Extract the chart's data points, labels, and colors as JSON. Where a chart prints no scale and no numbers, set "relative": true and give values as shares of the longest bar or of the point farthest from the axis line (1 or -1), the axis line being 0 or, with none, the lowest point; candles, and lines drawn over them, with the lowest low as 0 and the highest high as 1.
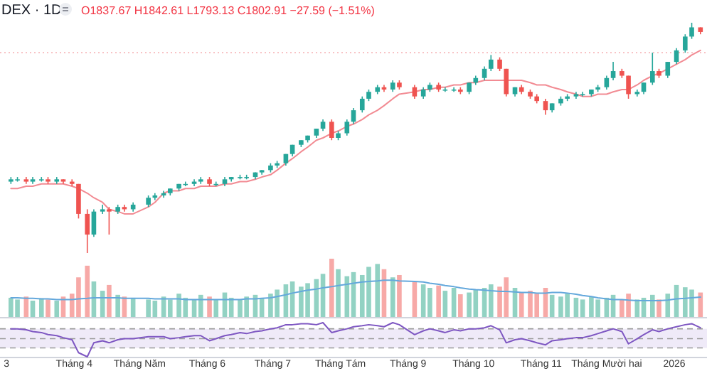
{
  "chart_data": [
    {
      "type": "candlestick",
      "title": "DEX · 1D",
      "subtitle": "O1837.67 H1842.61 L1793.13 C1802.91 −27.59 (−1.51%)",
      "relative": true,
      "tick_labels": false,
      "xlim": [
        "2025-02-26",
        "2026-01-16"
      ],
      "x": [
        "2025-03-03",
        "2025-03-06",
        "2025-03-10",
        "2025-03-13",
        "2025-03-17",
        "2025-03-20",
        "2025-03-24",
        "2025-03-27",
        "2025-03-31",
        "2025-04-03",
        "2025-04-07",
        "2025-04-10",
        "2025-04-14",
        "2025-04-17",
        "2025-04-21",
        "2025-04-24",
        "2025-04-28",
        "2025-05-05",
        "2025-05-08",
        "2025-05-12",
        "2025-05-15",
        "2025-05-19",
        "2025-05-22",
        "2025-05-26",
        "2025-05-29",
        "2025-06-02",
        "2025-06-05",
        "2025-06-09",
        "2025-06-12",
        "2025-06-16",
        "2025-06-19",
        "2025-06-23",
        "2025-06-26",
        "2025-06-30",
        "2025-07-03",
        "2025-07-07",
        "2025-07-10",
        "2025-07-14",
        "2025-07-17",
        "2025-07-21",
        "2025-07-24",
        "2025-07-28",
        "2025-07-31",
        "2025-08-04",
        "2025-08-07",
        "2025-08-11",
        "2025-08-14",
        "2025-08-18",
        "2025-08-21",
        "2025-08-25",
        "2025-08-28",
        "2025-09-04",
        "2025-09-08",
        "2025-09-11",
        "2025-09-15",
        "2025-09-18",
        "2025-09-22",
        "2025-09-25",
        "2025-09-29",
        "2025-10-02",
        "2025-10-06",
        "2025-10-09",
        "2025-10-13",
        "2025-10-16",
        "2025-10-20",
        "2025-10-23",
        "2025-10-27",
        "2025-10-30",
        "2025-11-03",
        "2025-11-06",
        "2025-11-10",
        "2025-11-13",
        "2025-11-17",
        "2025-11-20",
        "2025-11-24",
        "2025-11-27",
        "2025-12-01",
        "2025-12-04",
        "2025-12-08",
        "2025-12-11",
        "2025-12-15",
        "2025-12-18",
        "2025-12-22",
        "2025-12-25",
        "2025-12-29",
        "2026-01-02",
        "2026-01-06",
        "2026-01-09",
        "2026-01-13"
      ],
      "ohlc": [
        [
          0.31,
          0.33,
          0.3,
          0.32
        ],
        [
          0.32,
          0.33,
          0.31,
          0.32
        ],
        [
          0.32,
          0.33,
          0.3,
          0.31
        ],
        [
          0.31,
          0.33,
          0.3,
          0.32
        ],
        [
          0.32,
          0.33,
          0.31,
          0.32
        ],
        [
          0.32,
          0.33,
          0.3,
          0.31
        ],
        [
          0.31,
          0.33,
          0.3,
          0.32
        ],
        [
          0.32,
          0.32,
          0.3,
          0.31
        ],
        [
          0.31,
          0.32,
          0.29,
          0.3
        ],
        [
          0.3,
          0.3,
          0.15,
          0.17
        ],
        [
          0.17,
          0.19,
          0.0,
          0.08
        ],
        [
          0.08,
          0.19,
          0.07,
          0.18
        ],
        [
          0.18,
          0.21,
          0.17,
          0.19
        ],
        [
          0.19,
          0.2,
          0.08,
          0.18
        ],
        [
          0.18,
          0.21,
          0.17,
          0.2
        ],
        [
          0.2,
          0.21,
          0.18,
          0.19
        ],
        [
          0.19,
          0.22,
          0.18,
          0.21
        ],
        [
          0.21,
          0.25,
          0.2,
          0.24
        ],
        [
          0.24,
          0.26,
          0.23,
          0.25
        ],
        [
          0.25,
          0.27,
          0.24,
          0.26
        ],
        [
          0.26,
          0.28,
          0.25,
          0.28
        ],
        [
          0.28,
          0.3,
          0.27,
          0.3
        ],
        [
          0.3,
          0.31,
          0.29,
          0.3
        ],
        [
          0.3,
          0.32,
          0.29,
          0.31
        ],
        [
          0.31,
          0.33,
          0.3,
          0.32
        ],
        [
          0.32,
          0.33,
          0.29,
          0.3
        ],
        [
          0.3,
          0.31,
          0.29,
          0.3
        ],
        [
          0.3,
          0.33,
          0.29,
          0.32
        ],
        [
          0.32,
          0.33,
          0.31,
          0.33
        ],
        [
          0.33,
          0.34,
          0.32,
          0.33
        ],
        [
          0.33,
          0.34,
          0.32,
          0.33
        ],
        [
          0.33,
          0.35,
          0.32,
          0.35
        ],
        [
          0.35,
          0.36,
          0.34,
          0.36
        ],
        [
          0.36,
          0.39,
          0.35,
          0.38
        ],
        [
          0.38,
          0.4,
          0.37,
          0.39
        ],
        [
          0.39,
          0.43,
          0.38,
          0.43
        ],
        [
          0.43,
          0.47,
          0.42,
          0.47
        ],
        [
          0.47,
          0.49,
          0.46,
          0.49
        ],
        [
          0.49,
          0.51,
          0.48,
          0.51
        ],
        [
          0.51,
          0.54,
          0.5,
          0.54
        ],
        [
          0.54,
          0.58,
          0.53,
          0.57
        ],
        [
          0.57,
          0.58,
          0.49,
          0.5
        ],
        [
          0.5,
          0.53,
          0.49,
          0.52
        ],
        [
          0.52,
          0.58,
          0.51,
          0.57
        ],
        [
          0.57,
          0.63,
          0.56,
          0.62
        ],
        [
          0.62,
          0.68,
          0.61,
          0.67
        ],
        [
          0.67,
          0.71,
          0.66,
          0.7
        ],
        [
          0.7,
          0.73,
          0.69,
          0.72
        ],
        [
          0.72,
          0.73,
          0.7,
          0.71
        ],
        [
          0.71,
          0.75,
          0.7,
          0.74
        ],
        [
          0.74,
          0.75,
          0.71,
          0.72
        ],
        [
          0.72,
          0.73,
          0.67,
          0.68
        ],
        [
          0.68,
          0.72,
          0.67,
          0.71
        ],
        [
          0.71,
          0.74,
          0.7,
          0.73
        ],
        [
          0.73,
          0.74,
          0.7,
          0.71
        ],
        [
          0.71,
          0.72,
          0.7,
          0.71
        ],
        [
          0.71,
          0.72,
          0.7,
          0.71
        ],
        [
          0.71,
          0.72,
          0.69,
          0.7
        ],
        [
          0.7,
          0.74,
          0.69,
          0.74
        ],
        [
          0.74,
          0.77,
          0.73,
          0.76
        ],
        [
          0.76,
          0.81,
          0.75,
          0.8
        ],
        [
          0.8,
          0.86,
          0.79,
          0.84
        ],
        [
          0.84,
          0.85,
          0.79,
          0.8
        ],
        [
          0.8,
          0.8,
          0.68,
          0.69
        ],
        [
          0.69,
          0.72,
          0.68,
          0.72
        ],
        [
          0.72,
          0.73,
          0.69,
          0.7
        ],
        [
          0.7,
          0.71,
          0.67,
          0.68
        ],
        [
          0.68,
          0.69,
          0.65,
          0.66
        ],
        [
          0.66,
          0.67,
          0.6,
          0.62
        ],
        [
          0.62,
          0.65,
          0.61,
          0.65
        ],
        [
          0.65,
          0.68,
          0.64,
          0.67
        ],
        [
          0.67,
          0.69,
          0.66,
          0.68
        ],
        [
          0.68,
          0.7,
          0.67,
          0.69
        ],
        [
          0.69,
          0.7,
          0.68,
          0.69
        ],
        [
          0.69,
          0.71,
          0.68,
          0.71
        ],
        [
          0.71,
          0.73,
          0.7,
          0.72
        ],
        [
          0.72,
          0.77,
          0.71,
          0.76
        ],
        [
          0.76,
          0.83,
          0.75,
          0.79
        ],
        [
          0.79,
          0.8,
          0.76,
          0.77
        ],
        [
          0.77,
          0.77,
          0.67,
          0.69
        ],
        [
          0.69,
          0.71,
          0.68,
          0.7
        ],
        [
          0.7,
          0.74,
          0.69,
          0.74
        ],
        [
          0.74,
          0.87,
          0.73,
          0.79
        ],
        [
          0.79,
          0.8,
          0.76,
          0.77
        ],
        [
          0.77,
          0.83,
          0.76,
          0.83
        ],
        [
          0.83,
          0.89,
          0.82,
          0.88
        ],
        [
          0.88,
          0.95,
          0.87,
          0.94
        ],
        [
          0.94,
          1.0,
          0.93,
          0.98
        ],
        [
          0.98,
          0.98,
          0.95,
          0.96
        ]
      ],
      "series": [
        {
          "type": "line",
          "color": "#f28b93",
          "values": [
            0.28,
            0.28,
            0.29,
            0.29,
            0.3,
            0.3,
            0.3,
            0.3,
            0.29,
            0.28,
            0.26,
            0.24,
            0.22,
            0.19,
            0.18,
            0.17,
            0.17,
            0.2,
            0.22,
            0.26,
            0.27,
            0.27,
            0.28,
            0.28,
            0.29,
            0.29,
            0.29,
            0.3,
            0.3,
            0.31,
            0.31,
            0.32,
            0.33,
            0.34,
            0.36,
            0.39,
            0.41,
            0.44,
            0.46,
            0.49,
            0.5,
            0.52,
            0.53,
            0.55,
            0.56,
            0.58,
            0.6,
            0.62,
            0.64,
            0.67,
            0.69,
            0.7,
            0.71,
            0.71,
            0.72,
            0.72,
            0.73,
            0.73,
            0.74,
            0.74,
            0.75,
            0.75,
            0.75,
            0.75,
            0.75,
            0.75,
            0.74,
            0.73,
            0.73,
            0.72,
            0.71,
            0.7,
            0.69,
            0.68,
            0.68,
            0.69,
            0.69,
            0.7,
            0.71,
            0.71,
            0.73,
            0.75,
            0.77,
            0.78,
            0.8,
            0.82,
            0.84,
            0.86,
            0.88
          ]
        }
      ],
      "ref_lines": [
        {
          "axis": "y",
          "value": 0.87,
          "color": "#f7b8bb",
          "line_style": "dotted"
        }
      ]
    },
    {
      "type": "bar",
      "relative": true,
      "tick_labels": false,
      "xlim": [
        "2025-02-26",
        "2026-01-16"
      ],
      "x": [
        "2025-03-03",
        "2025-03-06",
        "2025-03-10",
        "2025-03-13",
        "2025-03-17",
        "2025-03-20",
        "2025-03-24",
        "2025-03-27",
        "2025-03-31",
        "2025-04-03",
        "2025-04-07",
        "2025-04-10",
        "2025-04-14",
        "2025-04-17",
        "2025-04-21",
        "2025-04-24",
        "2025-04-28",
        "2025-05-05",
        "2025-05-08",
        "2025-05-12",
        "2025-05-15",
        "2025-05-19",
        "2025-05-22",
        "2025-05-26",
        "2025-05-29",
        "2025-06-02",
        "2025-06-05",
        "2025-06-09",
        "2025-06-12",
        "2025-06-16",
        "2025-06-19",
        "2025-06-23",
        "2025-06-26",
        "2025-06-30",
        "2025-07-03",
        "2025-07-07",
        "2025-07-10",
        "2025-07-14",
        "2025-07-17",
        "2025-07-21",
        "2025-07-24",
        "2025-07-28",
        "2025-07-31",
        "2025-08-04",
        "2025-08-07",
        "2025-08-11",
        "2025-08-14",
        "2025-08-18",
        "2025-08-21",
        "2025-08-25",
        "2025-08-28",
        "2025-09-04",
        "2025-09-08",
        "2025-09-11",
        "2025-09-15",
        "2025-09-18",
        "2025-09-22",
        "2025-09-25",
        "2025-09-29",
        "2025-10-02",
        "2025-10-06",
        "2025-10-09",
        "2025-10-13",
        "2025-10-16",
        "2025-10-20",
        "2025-10-23",
        "2025-10-27",
        "2025-10-30",
        "2025-11-03",
        "2025-11-06",
        "2025-11-10",
        "2025-11-13",
        "2025-11-17",
        "2025-11-20",
        "2025-11-24",
        "2025-11-27",
        "2025-12-01",
        "2025-12-04",
        "2025-12-08",
        "2025-12-11",
        "2025-12-15",
        "2025-12-18",
        "2025-12-22",
        "2025-12-25",
        "2025-12-29",
        "2026-01-02",
        "2026-01-06",
        "2026-01-09",
        "2026-01-13"
      ],
      "series": [
        {
          "type": "bar",
          "values": [
            0.33,
            0.3,
            0.35,
            0.28,
            0.32,
            0.3,
            0.28,
            0.35,
            0.4,
            0.68,
            0.88,
            0.61,
            0.45,
            0.55,
            0.38,
            0.35,
            0.33,
            0.3,
            0.28,
            0.35,
            0.3,
            0.4,
            0.33,
            0.3,
            0.38,
            0.35,
            0.3,
            0.42,
            0.33,
            0.3,
            0.35,
            0.38,
            0.33,
            0.4,
            0.47,
            0.56,
            0.61,
            0.52,
            0.58,
            0.65,
            0.74,
            1.0,
            0.82,
            0.7,
            0.77,
            0.72,
            0.86,
            0.91,
            0.82,
            0.68,
            0.72,
            0.6,
            0.56,
            0.5,
            0.54,
            0.45,
            0.5,
            0.39,
            0.42,
            0.47,
            0.5,
            0.56,
            0.52,
            0.68,
            0.5,
            0.42,
            0.45,
            0.4,
            0.5,
            0.38,
            0.35,
            0.4,
            0.33,
            0.3,
            0.35,
            0.3,
            0.33,
            0.38,
            0.3,
            0.4,
            0.3,
            0.33,
            0.38,
            0.3,
            0.4,
            0.55,
            0.51,
            0.47,
            0.42
          ],
          "colors": [
            "#92d2c3",
            "#92d2c3",
            "#f7a9a7",
            "#92d2c3",
            "#92d2c3",
            "#f7a9a7",
            "#92d2c3",
            "#f7a9a7",
            "#f7a9a7",
            "#f7a9a7",
            "#f7a9a7",
            "#92d2c3",
            "#92d2c3",
            "#f7a9a7",
            "#92d2c3",
            "#f7a9a7",
            "#92d2c3",
            "#92d2c3",
            "#92d2c3",
            "#92d2c3",
            "#92d2c3",
            "#92d2c3",
            "#92d2c3",
            "#92d2c3",
            "#92d2c3",
            "#f7a9a7",
            "#92d2c3",
            "#92d2c3",
            "#92d2c3",
            "#92d2c3",
            "#92d2c3",
            "#92d2c3",
            "#92d2c3",
            "#92d2c3",
            "#92d2c3",
            "#92d2c3",
            "#92d2c3",
            "#92d2c3",
            "#92d2c3",
            "#92d2c3",
            "#92d2c3",
            "#f7a9a7",
            "#92d2c3",
            "#92d2c3",
            "#92d2c3",
            "#92d2c3",
            "#92d2c3",
            "#92d2c3",
            "#f7a9a7",
            "#92d2c3",
            "#f7a9a7",
            "#f7a9a7",
            "#92d2c3",
            "#92d2c3",
            "#f7a9a7",
            "#92d2c3",
            "#92d2c3",
            "#f7a9a7",
            "#92d2c3",
            "#92d2c3",
            "#92d2c3",
            "#92d2c3",
            "#f7a9a7",
            "#f7a9a7",
            "#92d2c3",
            "#f7a9a7",
            "#f7a9a7",
            "#f7a9a7",
            "#f7a9a7",
            "#92d2c3",
            "#92d2c3",
            "#92d2c3",
            "#92d2c3",
            "#92d2c3",
            "#92d2c3",
            "#92d2c3",
            "#92d2c3",
            "#92d2c3",
            "#f7a9a7",
            "#f7a9a7",
            "#92d2c3",
            "#92d2c3",
            "#92d2c3",
            "#f7a9a7",
            "#92d2c3",
            "#92d2c3",
            "#92d2c3",
            "#92d2c3",
            "#f7a9a7"
          ]
        },
        {
          "type": "line",
          "color": "#64a8dc",
          "values": [
            0.33,
            0.33,
            0.32,
            0.32,
            0.31,
            0.31,
            0.3,
            0.3,
            0.3,
            0.31,
            0.32,
            0.33,
            0.33,
            0.33,
            0.33,
            0.32,
            0.32,
            0.32,
            0.31,
            0.31,
            0.31,
            0.31,
            0.3,
            0.3,
            0.3,
            0.3,
            0.3,
            0.3,
            0.3,
            0.3,
            0.31,
            0.31,
            0.32,
            0.33,
            0.35,
            0.38,
            0.41,
            0.44,
            0.46,
            0.48,
            0.5,
            0.52,
            0.54,
            0.56,
            0.58,
            0.6,
            0.61,
            0.62,
            0.63,
            0.63,
            0.62,
            0.61,
            0.6,
            0.58,
            0.56,
            0.54,
            0.52,
            0.5,
            0.48,
            0.47,
            0.46,
            0.45,
            0.44,
            0.44,
            0.43,
            0.42,
            0.42,
            0.41,
            0.41,
            0.42,
            0.42,
            0.41,
            0.39,
            0.37,
            0.35,
            0.33,
            0.31,
            0.3,
            0.3,
            0.29,
            0.28,
            0.28,
            0.28,
            0.28,
            0.29,
            0.31,
            0.32,
            0.33,
            0.34
          ]
        }
      ]
    },
    {
      "type": "line",
      "relative": true,
      "tick_labels": "x",
      "xlim": [
        "2025-02-26",
        "2026-01-16"
      ],
      "xticks": [
        {
          "value": "2025-03-01",
          "label": "3"
        },
        {
          "value": "2025-04-01",
          "label": "Tháng 4"
        },
        {
          "value": "2025-05-01",
          "label": "Tháng Năm"
        },
        {
          "value": "2025-06-01",
          "label": "Tháng 6"
        },
        {
          "value": "2025-07-01",
          "label": "Tháng 7"
        },
        {
          "value": "2025-08-01",
          "label": "Tháng Tám"
        },
        {
          "value": "2025-09-01",
          "label": "Tháng 9"
        },
        {
          "value": "2025-10-01",
          "label": "Tháng 10"
        },
        {
          "value": "2025-11-01",
          "label": "Tháng 11"
        },
        {
          "value": "2025-12-01",
          "label": "Tháng Mười hai"
        },
        {
          "value": "2026-01-01",
          "label": "2026"
        }
      ],
      "x": [
        "2025-03-03",
        "2025-03-06",
        "2025-03-10",
        "2025-03-13",
        "2025-03-17",
        "2025-03-20",
        "2025-03-24",
        "2025-03-27",
        "2025-03-31",
        "2025-04-03",
        "2025-04-07",
        "2025-04-10",
        "2025-04-14",
        "2025-04-17",
        "2025-04-21",
        "2025-04-24",
        "2025-04-28",
        "2025-05-05",
        "2025-05-08",
        "2025-05-12",
        "2025-05-15",
        "2025-05-19",
        "2025-05-22",
        "2025-05-26",
        "2025-05-29",
        "2025-06-02",
        "2025-06-05",
        "2025-06-09",
        "2025-06-12",
        "2025-06-16",
        "2025-06-19",
        "2025-06-23",
        "2025-06-26",
        "2025-06-30",
        "2025-07-03",
        "2025-07-07",
        "2025-07-10",
        "2025-07-14",
        "2025-07-17",
        "2025-07-21",
        "2025-07-24",
        "2025-07-28",
        "2025-07-31",
        "2025-08-04",
        "2025-08-07",
        "2025-08-11",
        "2025-08-14",
        "2025-08-18",
        "2025-08-21",
        "2025-08-25",
        "2025-08-28",
        "2025-09-04",
        "2025-09-08",
        "2025-09-11",
        "2025-09-15",
        "2025-09-18",
        "2025-09-22",
        "2025-09-25",
        "2025-09-29",
        "2025-10-02",
        "2025-10-06",
        "2025-10-09",
        "2025-10-13",
        "2025-10-16",
        "2025-10-20",
        "2025-10-23",
        "2025-10-27",
        "2025-10-30",
        "2025-11-03",
        "2025-11-06",
        "2025-11-10",
        "2025-11-13",
        "2025-11-17",
        "2025-11-20",
        "2025-11-24",
        "2025-11-27",
        "2025-12-01",
        "2025-12-04",
        "2025-12-08",
        "2025-12-11",
        "2025-12-15",
        "2025-12-18",
        "2025-12-22",
        "2025-12-25",
        "2025-12-29",
        "2026-01-02",
        "2026-01-06",
        "2026-01-09",
        "2026-01-13"
      ],
      "series": [
        {
          "type": "line",
          "color": "#7e57c2",
          "values": [
            0.82,
            0.82,
            0.79,
            0.74,
            0.71,
            0.65,
            0.62,
            0.56,
            0.5,
            0.12,
            0,
            0.41,
            0.47,
            0.41,
            0.5,
            0.53,
            0.53,
            0.59,
            0.59,
            0.59,
            0.53,
            0.56,
            0.59,
            0.62,
            0.62,
            0.47,
            0.53,
            0.62,
            0.65,
            0.71,
            0.68,
            0.74,
            0.76,
            0.82,
            0.85,
            0.94,
            0.94,
            0.97,
            0.97,
            0.94,
            1.0,
            0.71,
            0.76,
            0.82,
            0.88,
            0.91,
            0.94,
            0.91,
            0.88,
            1.0,
            0.94,
            0.65,
            0.76,
            0.82,
            0.76,
            0.71,
            0.79,
            0.76,
            0.82,
            0.82,
            0.85,
            0.91,
            0.79,
            0.41,
            0.5,
            0.53,
            0.47,
            0.41,
            0.35,
            0.47,
            0.5,
            0.53,
            0.56,
            0.56,
            0.62,
            0.68,
            0.76,
            0.82,
            0.74,
            0.38,
            0.53,
            0.65,
            0.79,
            0.74,
            0.82,
            0.88,
            0.94,
            0.97,
            0.85
          ]
        }
      ],
      "bands": [
        {
          "axis": "y",
          "from": 0.26,
          "to": 0.82,
          "color": "#efeaf8"
        }
      ],
      "ref_lines": [
        {
          "axis": "y",
          "value": 0.82,
          "color": "#9a9a9a",
          "line_style": "dashed"
        },
        {
          "axis": "y",
          "value": 0.53,
          "color": "#9a9a9a",
          "line_style": "dashed"
        },
        {
          "axis": "y",
          "value": 0.26,
          "color": "#9a9a9a",
          "line_style": "dashed"
        }
      ]
    }
  ]
}
